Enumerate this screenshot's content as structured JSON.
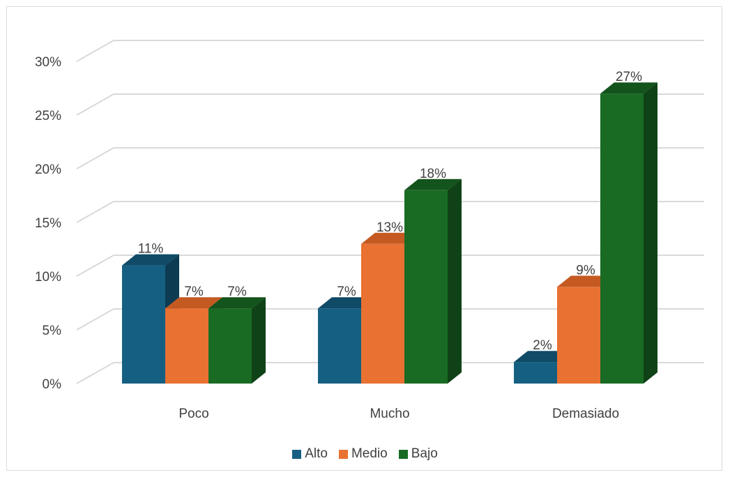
{
  "chart_data": {
    "type": "bar",
    "style": "3d-clustered-column",
    "categories": [
      "Poco",
      "Mucho",
      "Demasiado"
    ],
    "series": [
      {
        "name": "Alto",
        "values": [
          11,
          7,
          2
        ],
        "labels": [
          "11%",
          "7%",
          "2%"
        ],
        "color": "#156082",
        "side_color": "#0c3b52",
        "top_color": "#0f4a66"
      },
      {
        "name": "Medio",
        "values": [
          7,
          13,
          9
        ],
        "labels": [
          "7%",
          "13%",
          "9%"
        ],
        "color": "#e97132",
        "side_color": "#a34b1d",
        "top_color": "#c45a22"
      },
      {
        "name": "Bajo",
        "values": [
          7,
          18,
          27
        ],
        "labels": [
          "7%",
          "18%",
          "27%"
        ],
        "color": "#196b24",
        "side_color": "#0f4217",
        "top_color": "#13531c"
      }
    ],
    "y_ticks": [
      "0%",
      "5%",
      "10%",
      "15%",
      "20%",
      "25%",
      "30%"
    ],
    "ylim": [
      0,
      30
    ],
    "grid": true,
    "legend_position": "bottom"
  }
}
